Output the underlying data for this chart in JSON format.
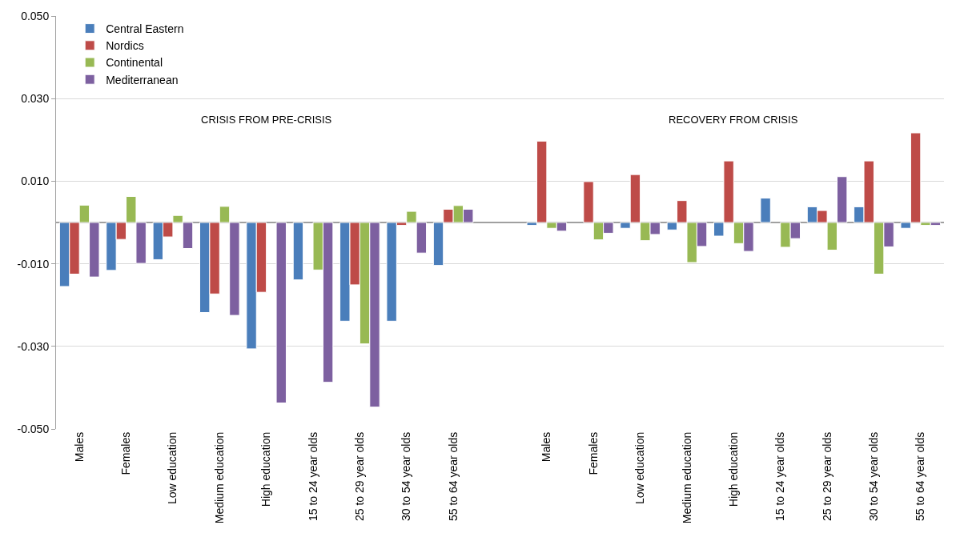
{
  "chart_data": {
    "type": "bar",
    "categories": [
      "Males",
      "Females",
      "Low education",
      "Medium education",
      "High education",
      "15 to 24 year olds",
      "25 to 29 year olds",
      "30 to 54 year olds",
      "55 to 64 year olds",
      null,
      "Males",
      "Females",
      "Low education",
      "Medium education",
      "High education",
      "15 to 24 year olds",
      "25 to 29 year olds",
      "30 to 54 year olds",
      "55 to 64 year olds"
    ],
    "series": [
      {
        "name": "Central Eastern",
        "color": "#4a7ebb",
        "values": [
          -0.0155,
          -0.0116,
          -0.009,
          -0.0218,
          -0.0306,
          -0.0139,
          -0.0239,
          -0.0239,
          -0.0104,
          null,
          -0.0007,
          null,
          -0.0014,
          -0.0018,
          -0.0033,
          0.0059,
          0.0038,
          0.0038,
          -0.0014
        ]
      },
      {
        "name": "Nordics",
        "color": "#be4b48",
        "values": [
          -0.0125,
          -0.0041,
          -0.0035,
          -0.0173,
          -0.0169,
          null,
          -0.0151,
          -0.0007,
          0.0032,
          null,
          0.0197,
          0.0099,
          0.0116,
          0.0053,
          0.0149,
          null,
          0.0029,
          0.0149,
          0.0217
        ]
      },
      {
        "name": "Continental",
        "color": "#98b954",
        "values": [
          0.0042,
          0.0063,
          0.0017,
          0.0039,
          null,
          -0.0115,
          -0.0294,
          0.0027,
          0.0041,
          null,
          -0.0014,
          -0.0042,
          -0.0044,
          -0.0097,
          -0.0051,
          -0.006,
          -0.0067,
          -0.0125,
          -0.0007
        ]
      },
      {
        "name": "Mediterranean",
        "color": "#7d60a0",
        "values": [
          -0.0132,
          -0.0099,
          -0.0063,
          -0.0225,
          -0.0437,
          -0.0387,
          -0.0447,
          -0.0074,
          0.0032,
          null,
          -0.0021,
          -0.0026,
          -0.0029,
          -0.0058,
          -0.007,
          -0.0039,
          0.0111,
          -0.0059,
          -0.0007
        ]
      }
    ],
    "ylim": [
      -0.05,
      0.05
    ],
    "yticks": [
      {
        "value": 0.05,
        "label": "0.050"
      },
      {
        "value": 0.03,
        "label": "0.030"
      },
      {
        "value": 0.01,
        "label": "0.010"
      },
      {
        "value": -0.01,
        "label": "-0.010"
      },
      {
        "value": -0.03,
        "label": "-0.030"
      },
      {
        "value": -0.05,
        "label": "-0.050"
      }
    ],
    "grid": "y",
    "legend": "top left",
    "annotations": [
      "CRISIS FROM PRE-CRISIS",
      "RECOVERY FROM CRISIS"
    ]
  }
}
